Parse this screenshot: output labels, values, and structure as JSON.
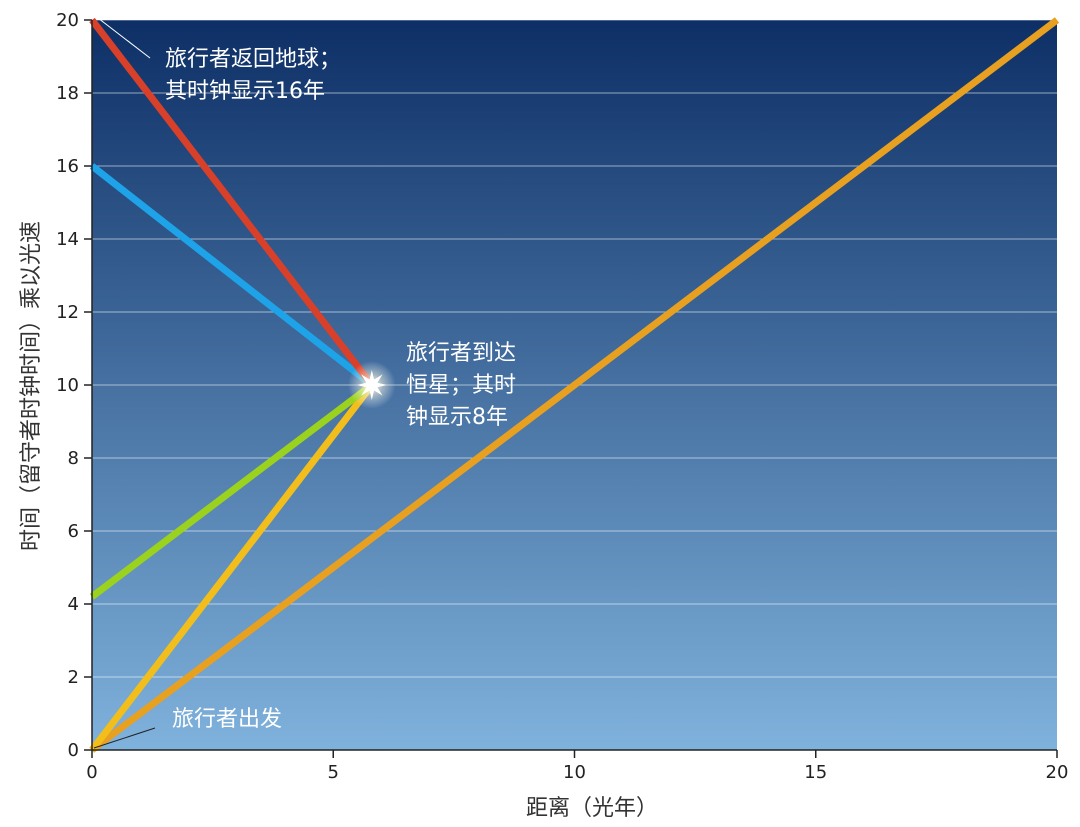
{
  "chart_data": {
    "type": "line",
    "title": "",
    "xlabel": "距离（光年）",
    "ylabel": "时间（留守者时钟时间）乘以光速",
    "xlim": [
      0,
      20
    ],
    "ylim": [
      0,
      20
    ],
    "x_ticks": [
      0,
      5,
      10,
      15,
      20
    ],
    "y_ticks": [
      0,
      2,
      4,
      6,
      8,
      10,
      12,
      14,
      16,
      18,
      20
    ],
    "grid": "horizontal",
    "series": [
      {
        "color": "#e8a020",
        "points": [
          [
            0,
            0
          ],
          [
            20,
            20
          ]
        ]
      },
      {
        "color": "#f2be1c",
        "points": [
          [
            0,
            0
          ],
          [
            5.8,
            10
          ]
        ]
      },
      {
        "color": "#9bd21e",
        "points": [
          [
            0,
            4.2
          ],
          [
            5.8,
            10
          ]
        ]
      },
      {
        "color": "#1ea3e8",
        "points": [
          [
            0,
            16
          ],
          [
            5.8,
            10
          ]
        ]
      },
      {
        "color": "#d8402a",
        "points": [
          [
            0,
            20
          ],
          [
            5.8,
            10
          ]
        ]
      }
    ],
    "star": {
      "x": 5.8,
      "y": 10
    },
    "annotations": [
      {
        "lines": [
          "旅行者返回地球；",
          "其时钟显示16年"
        ],
        "pointer": [
          0,
          20
        ]
      },
      {
        "lines": [
          "旅行者到达",
          "恒星；其时",
          "钟显示8年"
        ]
      },
      {
        "lines": [
          "旅行者出发"
        ],
        "pointer": [
          0,
          0
        ]
      }
    ],
    "background_gradient": {
      "top": "#0d2f66",
      "bottom": "#7fb2dc"
    }
  }
}
